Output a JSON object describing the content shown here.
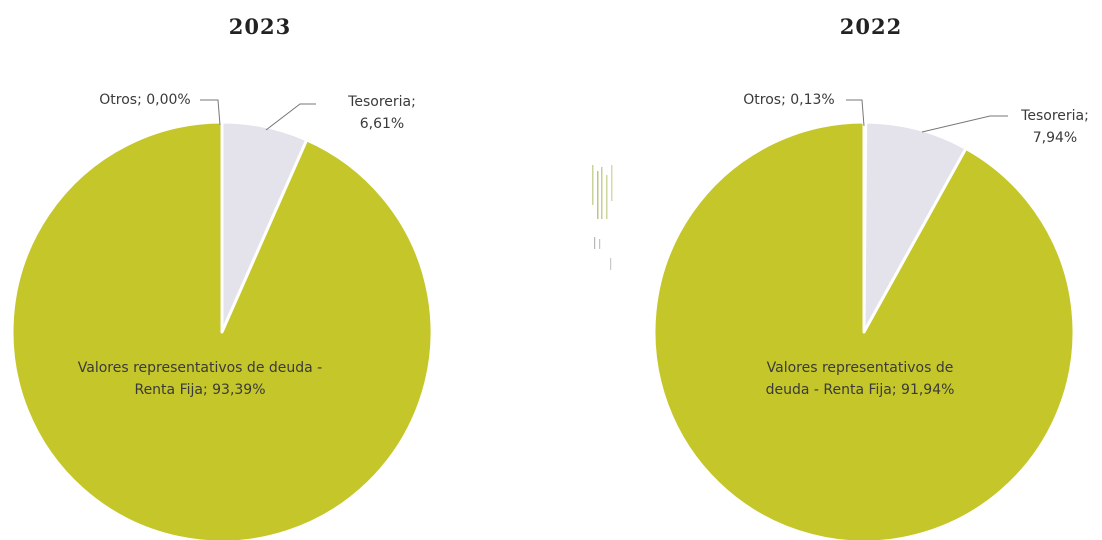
{
  "chart_data": [
    {
      "type": "pie",
      "title": "2023",
      "slices": [
        {
          "label": "Otros",
          "value": 0.0,
          "text": [
            "Otros; 0,00%"
          ]
        },
        {
          "label": "Tesoreria",
          "value": 6.61,
          "text": [
            "Tesoreria;",
            "6,61%"
          ]
        },
        {
          "label": "Valores representativos de deuda - Renta Fija",
          "value": 93.39,
          "text": [
            "Valores representativos de deuda -",
            "Renta Fija; 93,39%"
          ]
        }
      ]
    },
    {
      "type": "pie",
      "title": "2022",
      "slices": [
        {
          "label": "Otros",
          "value": 0.13,
          "text": [
            "Otros; 0,13%"
          ]
        },
        {
          "label": "Tesoreria",
          "value": 7.94,
          "text": [
            "Tesoreria;",
            "7,94%"
          ]
        },
        {
          "label": "Valores representativos de deuda - Renta Fija",
          "value": 91.94,
          "text": [
            "Valores representativos de",
            "deuda - Renta Fija; 91,94%"
          ]
        }
      ]
    }
  ],
  "colors": {
    "Otros": "#7a7a7a",
    "Tesoreria": "#e4e2ea",
    "Valores representativos de deuda - Renta Fija": "#c5c629",
    "leader": "#777777"
  }
}
